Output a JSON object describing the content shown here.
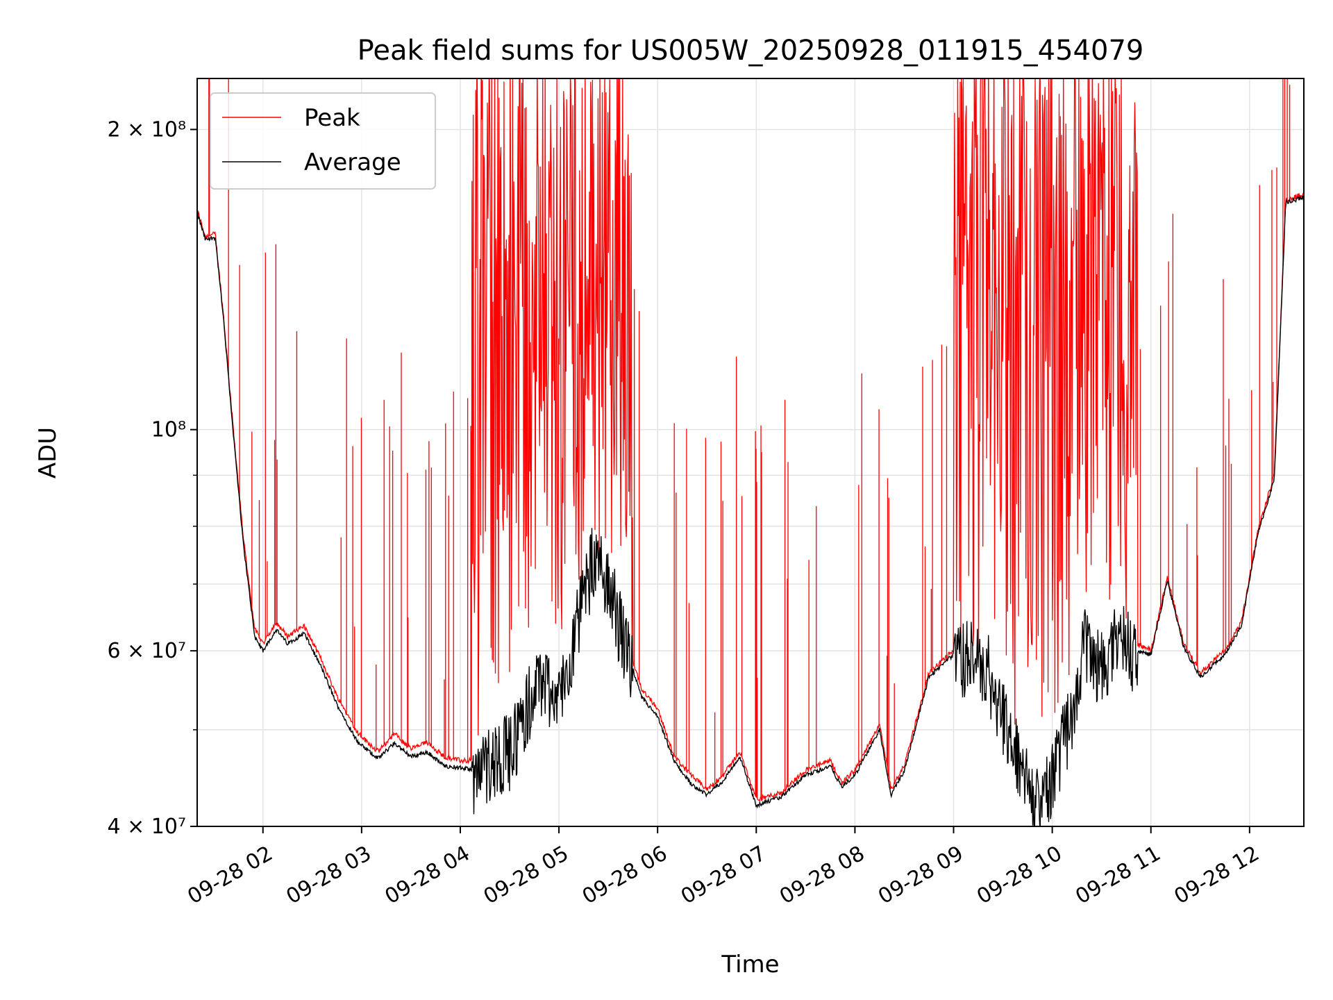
{
  "chart_data": {
    "type": "line",
    "title": "Peak field sums for US005W_20250928_011915_454079",
    "xlabel": "Time",
    "ylabel": "ADU",
    "x_scale": "time",
    "y_scale": "log",
    "xlim": [
      "2025-09-28 01:20",
      "2025-09-28 12:33"
    ],
    "ylim": [
      40000000,
      225000000
    ],
    "grid": true,
    "legend_position": "top-left",
    "x_ticks": [
      {
        "t": "2025-09-28 02:00",
        "label": "09-28 02"
      },
      {
        "t": "2025-09-28 03:00",
        "label": "09-28 03"
      },
      {
        "t": "2025-09-28 04:00",
        "label": "09-28 04"
      },
      {
        "t": "2025-09-28 05:00",
        "label": "09-28 05"
      },
      {
        "t": "2025-09-28 06:00",
        "label": "09-28 06"
      },
      {
        "t": "2025-09-28 07:00",
        "label": "09-28 07"
      },
      {
        "t": "2025-09-28 08:00",
        "label": "09-28 08"
      },
      {
        "t": "2025-09-28 09:00",
        "label": "09-28 09"
      },
      {
        "t": "2025-09-28 10:00",
        "label": "09-28 10"
      },
      {
        "t": "2025-09-28 11:00",
        "label": "09-28 11"
      },
      {
        "t": "2025-09-28 12:00",
        "label": "09-28 12"
      }
    ],
    "y_ticks": [
      {
        "value": 40000000,
        "label": "4 × 10⁷"
      },
      {
        "value": 60000000,
        "label": "6 × 10⁷"
      },
      {
        "value": 100000000,
        "label": "10⁸"
      },
      {
        "value": 200000000,
        "label": "2 × 10⁸"
      }
    ],
    "y_minor_ticks": [
      50000000,
      70000000,
      80000000,
      90000000
    ],
    "series": [
      {
        "name": "Peak",
        "color": "#ff0000",
        "baseline_points": [
          [
            "2025-09-28 01:20",
            166000000
          ],
          [
            "2025-09-28 01:25",
            156000000
          ],
          [
            "2025-09-28 01:31",
            157000000
          ],
          [
            "2025-09-28 01:36",
            130000000
          ],
          [
            "2025-09-28 01:42",
            100000000
          ],
          [
            "2025-09-28 01:48",
            78000000
          ],
          [
            "2025-09-28 01:55",
            63000000
          ],
          [
            "2025-09-28 02:00",
            61000000
          ],
          [
            "2025-09-28 02:08",
            64000000
          ],
          [
            "2025-09-28 02:15",
            62000000
          ],
          [
            "2025-09-28 02:25",
            63500000
          ],
          [
            "2025-09-28 02:35",
            59000000
          ],
          [
            "2025-09-28 02:45",
            54000000
          ],
          [
            "2025-09-28 02:58",
            49500000
          ],
          [
            "2025-09-28 03:10",
            47500000
          ],
          [
            "2025-09-28 03:20",
            49500000
          ],
          [
            "2025-09-28 03:30",
            47800000
          ],
          [
            "2025-09-28 03:40",
            48500000
          ],
          [
            "2025-09-28 03:50",
            47000000
          ],
          [
            "2025-09-28 04:00",
            46500000
          ],
          [
            "2025-09-28 04:10",
            46500000
          ],
          [
            "2025-09-28 04:20",
            50000000
          ],
          [
            "2025-09-28 04:30",
            54000000
          ],
          [
            "2025-09-28 04:40",
            60000000
          ],
          [
            "2025-09-28 04:50",
            64000000
          ],
          [
            "2025-09-28 05:00",
            62000000
          ],
          [
            "2025-09-28 05:10",
            66000000
          ],
          [
            "2025-09-28 05:20",
            75000000
          ],
          [
            "2025-09-28 05:30",
            73000000
          ],
          [
            "2025-09-28 05:40",
            62000000
          ],
          [
            "2025-09-28 05:50",
            55000000
          ],
          [
            "2025-09-28 06:00",
            52500000
          ],
          [
            "2025-09-28 06:10",
            47000000
          ],
          [
            "2025-09-28 06:20",
            45000000
          ],
          [
            "2025-09-28 06:30",
            43500000
          ],
          [
            "2025-09-28 06:40",
            45000000
          ],
          [
            "2025-09-28 06:50",
            47500000
          ],
          [
            "2025-09-28 07:00",
            42500000
          ],
          [
            "2025-09-28 07:15",
            43200000
          ],
          [
            "2025-09-28 07:30",
            45500000
          ],
          [
            "2025-09-28 07:45",
            46500000
          ],
          [
            "2025-09-28 07:52",
            44200000
          ],
          [
            "2025-09-28 08:00",
            45500000
          ],
          [
            "2025-09-28 08:15",
            50500000
          ],
          [
            "2025-09-28 08:22",
            43500000
          ],
          [
            "2025-09-28 08:30",
            46000000
          ],
          [
            "2025-09-28 08:45",
            57000000
          ],
          [
            "2025-09-28 09:00",
            60000000
          ],
          [
            "2025-09-28 09:10",
            60000000
          ],
          [
            "2025-09-28 09:20",
            59000000
          ],
          [
            "2025-09-28 09:30",
            53000000
          ],
          [
            "2025-09-28 09:40",
            48000000
          ],
          [
            "2025-09-28 09:50",
            45000000
          ],
          [
            "2025-09-28 10:00",
            49000000
          ],
          [
            "2025-09-28 10:10",
            55000000
          ],
          [
            "2025-09-28 10:20",
            66000000
          ],
          [
            "2025-09-28 10:30",
            61000000
          ],
          [
            "2025-09-28 10:40",
            66000000
          ],
          [
            "2025-09-28 10:50",
            61000000
          ],
          [
            "2025-09-28 11:00",
            60000000
          ],
          [
            "2025-09-28 11:10",
            71000000
          ],
          [
            "2025-09-28 11:20",
            61000000
          ],
          [
            "2025-09-28 11:30",
            57000000
          ],
          [
            "2025-09-28 11:45",
            60000000
          ],
          [
            "2025-09-28 11:55",
            64000000
          ],
          [
            "2025-09-28 12:05",
            79000000
          ],
          [
            "2025-09-28 12:15",
            90000000
          ],
          [
            "2025-09-28 12:22",
            170000000
          ],
          [
            "2025-09-28 12:33",
            172000000
          ]
        ],
        "spike_bursts": [
          {
            "start": "2025-09-28 04:07",
            "end": "2025-09-28 05:45",
            "peak": 225000000
          },
          {
            "start": "2025-09-28 09:00",
            "end": "2025-09-28 10:52",
            "peak": 225000000
          }
        ]
      },
      {
        "name": "Average",
        "color": "#000000",
        "baseline_points": [
          [
            "2025-09-28 01:20",
            165000000
          ],
          [
            "2025-09-28 01:25",
            155000000
          ],
          [
            "2025-09-28 01:31",
            156000000
          ],
          [
            "2025-09-28 01:36",
            129000000
          ],
          [
            "2025-09-28 01:42",
            99000000
          ],
          [
            "2025-09-28 01:48",
            77000000
          ],
          [
            "2025-09-28 01:55",
            62000000
          ],
          [
            "2025-09-28 02:00",
            60000000
          ],
          [
            "2025-09-28 02:08",
            63000000
          ],
          [
            "2025-09-28 02:15",
            61000000
          ],
          [
            "2025-09-28 02:25",
            62500000
          ],
          [
            "2025-09-28 02:35",
            58000000
          ],
          [
            "2025-09-28 02:45",
            53000000
          ],
          [
            "2025-09-28 02:58",
            48500000
          ],
          [
            "2025-09-28 03:10",
            46800000
          ],
          [
            "2025-09-28 03:20",
            48500000
          ],
          [
            "2025-09-28 03:30",
            47000000
          ],
          [
            "2025-09-28 03:40",
            47500000
          ],
          [
            "2025-09-28 03:50",
            46000000
          ],
          [
            "2025-09-28 04:00",
            45800000
          ],
          [
            "2025-09-28 04:10",
            45500000
          ],
          [
            "2025-09-28 04:20",
            47500000
          ],
          [
            "2025-09-28 04:30",
            48000000
          ],
          [
            "2025-09-28 04:40",
            53000000
          ],
          [
            "2025-09-28 04:50",
            57000000
          ],
          [
            "2025-09-28 05:00",
            54000000
          ],
          [
            "2025-09-28 05:10",
            63000000
          ],
          [
            "2025-09-28 05:20",
            74000000
          ],
          [
            "2025-09-28 05:30",
            72000000
          ],
          [
            "2025-09-28 05:40",
            61000000
          ],
          [
            "2025-09-28 05:50",
            54000000
          ],
          [
            "2025-09-28 06:00",
            51500000
          ],
          [
            "2025-09-28 06:10",
            46500000
          ],
          [
            "2025-09-28 06:20",
            44200000
          ],
          [
            "2025-09-28 06:30",
            43000000
          ],
          [
            "2025-09-28 06:40",
            44500000
          ],
          [
            "2025-09-28 06:50",
            47000000
          ],
          [
            "2025-09-28 07:00",
            42000000
          ],
          [
            "2025-09-28 07:15",
            42800000
          ],
          [
            "2025-09-28 07:30",
            45000000
          ],
          [
            "2025-09-28 07:45",
            46000000
          ],
          [
            "2025-09-28 07:52",
            43800000
          ],
          [
            "2025-09-28 08:00",
            45000000
          ],
          [
            "2025-09-28 08:15",
            50000000
          ],
          [
            "2025-09-28 08:22",
            43000000
          ],
          [
            "2025-09-28 08:30",
            45500000
          ],
          [
            "2025-09-28 08:45",
            56500000
          ],
          [
            "2025-09-28 09:00",
            59500000
          ],
          [
            "2025-09-28 09:10",
            59500000
          ],
          [
            "2025-09-28 09:20",
            58500000
          ],
          [
            "2025-09-28 09:30",
            52500000
          ],
          [
            "2025-09-28 09:40",
            46500000
          ],
          [
            "2025-09-28 09:50",
            42500000
          ],
          [
            "2025-09-28 10:00",
            45500000
          ],
          [
            "2025-09-28 10:10",
            51000000
          ],
          [
            "2025-09-28 10:20",
            62000000
          ],
          [
            "2025-09-28 10:30",
            58000000
          ],
          [
            "2025-09-28 10:40",
            63000000
          ],
          [
            "2025-09-28 10:50",
            60000000
          ],
          [
            "2025-09-28 11:00",
            59500000
          ],
          [
            "2025-09-28 11:10",
            70500000
          ],
          [
            "2025-09-28 11:20",
            60500000
          ],
          [
            "2025-09-28 11:30",
            56500000
          ],
          [
            "2025-09-28 11:45",
            59500000
          ],
          [
            "2025-09-28 11:55",
            63500000
          ],
          [
            "2025-09-28 12:05",
            78500000
          ],
          [
            "2025-09-28 12:15",
            89000000
          ],
          [
            "2025-09-28 12:22",
            169000000
          ],
          [
            "2025-09-28 12:33",
            171000000
          ]
        ]
      }
    ]
  }
}
